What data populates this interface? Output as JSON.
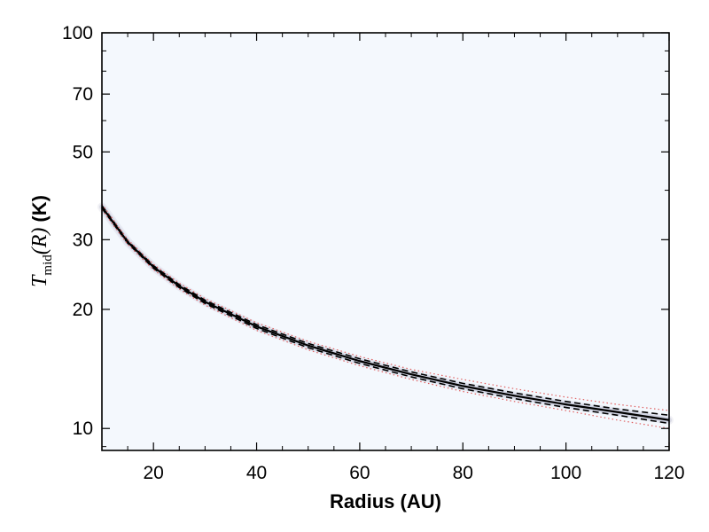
{
  "chart_data": {
    "type": "line",
    "x_label": "Radius (AU)",
    "y_label": {
      "math_symbol": "T",
      "math_subscript": "mid",
      "math_argument": "(R)",
      "unit": "(K)"
    },
    "x_range": [
      10,
      120
    ],
    "y_range": [
      8.8,
      100
    ],
    "y_scale": "log",
    "x_ticks": [
      20,
      40,
      60,
      80,
      100,
      120
    ],
    "x_tick_labels": [
      "20",
      "40",
      "60",
      "80",
      "100",
      "120"
    ],
    "y_ticks": [
      10,
      20,
      30,
      50,
      70,
      100
    ],
    "y_tick_labels": [
      "10",
      "20",
      "30",
      "50",
      "70",
      "100"
    ],
    "grid": false,
    "legend": "none",
    "colors": {
      "background": "#f4f8fd",
      "median_line": "#000000",
      "band_edges": "#000000",
      "dotted_bounds": "#e06060",
      "density_glow": "#8a8fb0"
    },
    "series": [
      {
        "role": "median",
        "style": "solid",
        "x": [
          10,
          15,
          20,
          25,
          30,
          40,
          50,
          60,
          70,
          80,
          90,
          100,
          110,
          120
        ],
        "y": [
          36.3,
          29.6,
          25.6,
          22.9,
          20.9,
          18.1,
          16.2,
          14.8,
          13.7,
          12.8,
          12.1,
          11.5,
          11.0,
          10.5
        ]
      },
      {
        "role": "upper-bound",
        "style": "dashed",
        "x": [
          10,
          15,
          20,
          25,
          30,
          40,
          50,
          60,
          70,
          80,
          90,
          100,
          110,
          120
        ],
        "y": [
          36.6,
          29.8,
          25.8,
          23.1,
          21.1,
          18.3,
          16.4,
          15.0,
          13.9,
          13.0,
          12.3,
          11.7,
          11.2,
          10.8
        ]
      },
      {
        "role": "lower-bound",
        "style": "dashed",
        "x": [
          10,
          15,
          20,
          25,
          30,
          40,
          50,
          60,
          70,
          80,
          90,
          100,
          110,
          120
        ],
        "y": [
          36.0,
          29.4,
          25.4,
          22.7,
          20.7,
          17.9,
          16.0,
          14.6,
          13.5,
          12.6,
          11.9,
          11.3,
          10.8,
          10.3
        ]
      },
      {
        "role": "upper-dotted",
        "style": "dotted",
        "x": [
          10,
          15,
          20,
          25,
          30,
          40,
          50,
          60,
          70,
          80,
          90,
          100,
          110,
          120
        ],
        "y": [
          36.9,
          30.0,
          26.0,
          23.3,
          21.3,
          18.5,
          16.6,
          15.2,
          14.1,
          13.3,
          12.6,
          12.0,
          11.5,
          11.1
        ]
      },
      {
        "role": "lower-dotted",
        "style": "dotted",
        "x": [
          10,
          15,
          20,
          25,
          30,
          40,
          50,
          60,
          70,
          80,
          90,
          100,
          110,
          120
        ],
        "y": [
          35.7,
          29.2,
          25.2,
          22.5,
          20.5,
          17.7,
          15.8,
          14.4,
          13.3,
          12.4,
          11.7,
          11.1,
          10.5,
          10.0
        ]
      }
    ]
  }
}
